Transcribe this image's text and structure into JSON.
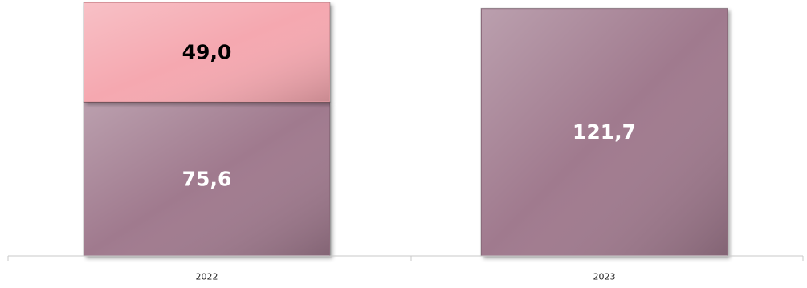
{
  "chart_data": {
    "type": "bar",
    "stacked": true,
    "categories": [
      "2022",
      "2023"
    ],
    "series": [
      {
        "values": [
          75.6,
          121.7
        ],
        "labels": [
          "75,6",
          "121,7"
        ],
        "color": "#a07a8e",
        "label_color": "#ffffff"
      },
      {
        "values": [
          49.0,
          null
        ],
        "labels": [
          "49,0",
          ""
        ],
        "color": "#f5a8b0",
        "label_color": "#000000"
      }
    ],
    "title": "",
    "xlabel": "",
    "ylabel": "",
    "ylim": [
      0,
      124.6
    ],
    "grid": false,
    "legend": "none"
  }
}
